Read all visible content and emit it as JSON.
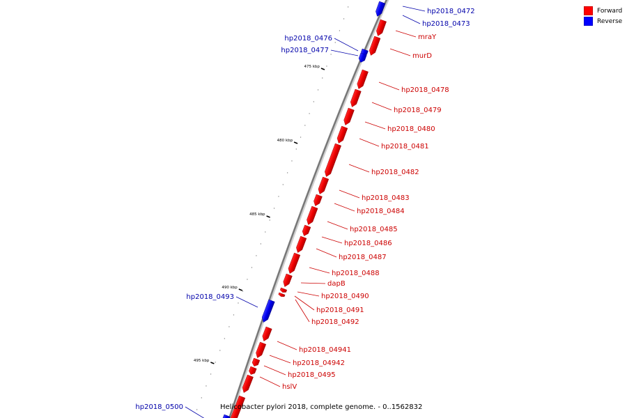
{
  "legend": [
    {
      "label": "Forward",
      "color": "#ff0000"
    },
    {
      "label": "Reverse",
      "color": "#0000ff"
    }
  ],
  "caption": "Helicobacter pylori 2018, complete genome. - 0..1562832",
  "ticks": [
    "475 kbp",
    "480 kbp",
    "485 kbp",
    "490 kbp",
    "495 kbp"
  ],
  "forward_labels": [
    "mraY",
    "murD",
    "hp2018_0478",
    "hp2018_0479",
    "hp2018_0480",
    "hp2018_0481",
    "hp2018_0482",
    "hp2018_0483",
    "hp2018_0484",
    "hp2018_0485",
    "hp2018_0486",
    "hp2018_0487",
    "hp2018_0488",
    "dapB",
    "hp2018_0490",
    "hp2018_0491",
    "hp2018_0492",
    "hp2018_04941",
    "hp2018_04942",
    "hp2018_0495",
    "hslV"
  ],
  "reverse_labels": [
    "hp2018_0472",
    "hp2018_0473",
    "hp2018_0476",
    "hp2018_0477",
    "hp2018_0493",
    "hp2018_0500"
  ]
}
